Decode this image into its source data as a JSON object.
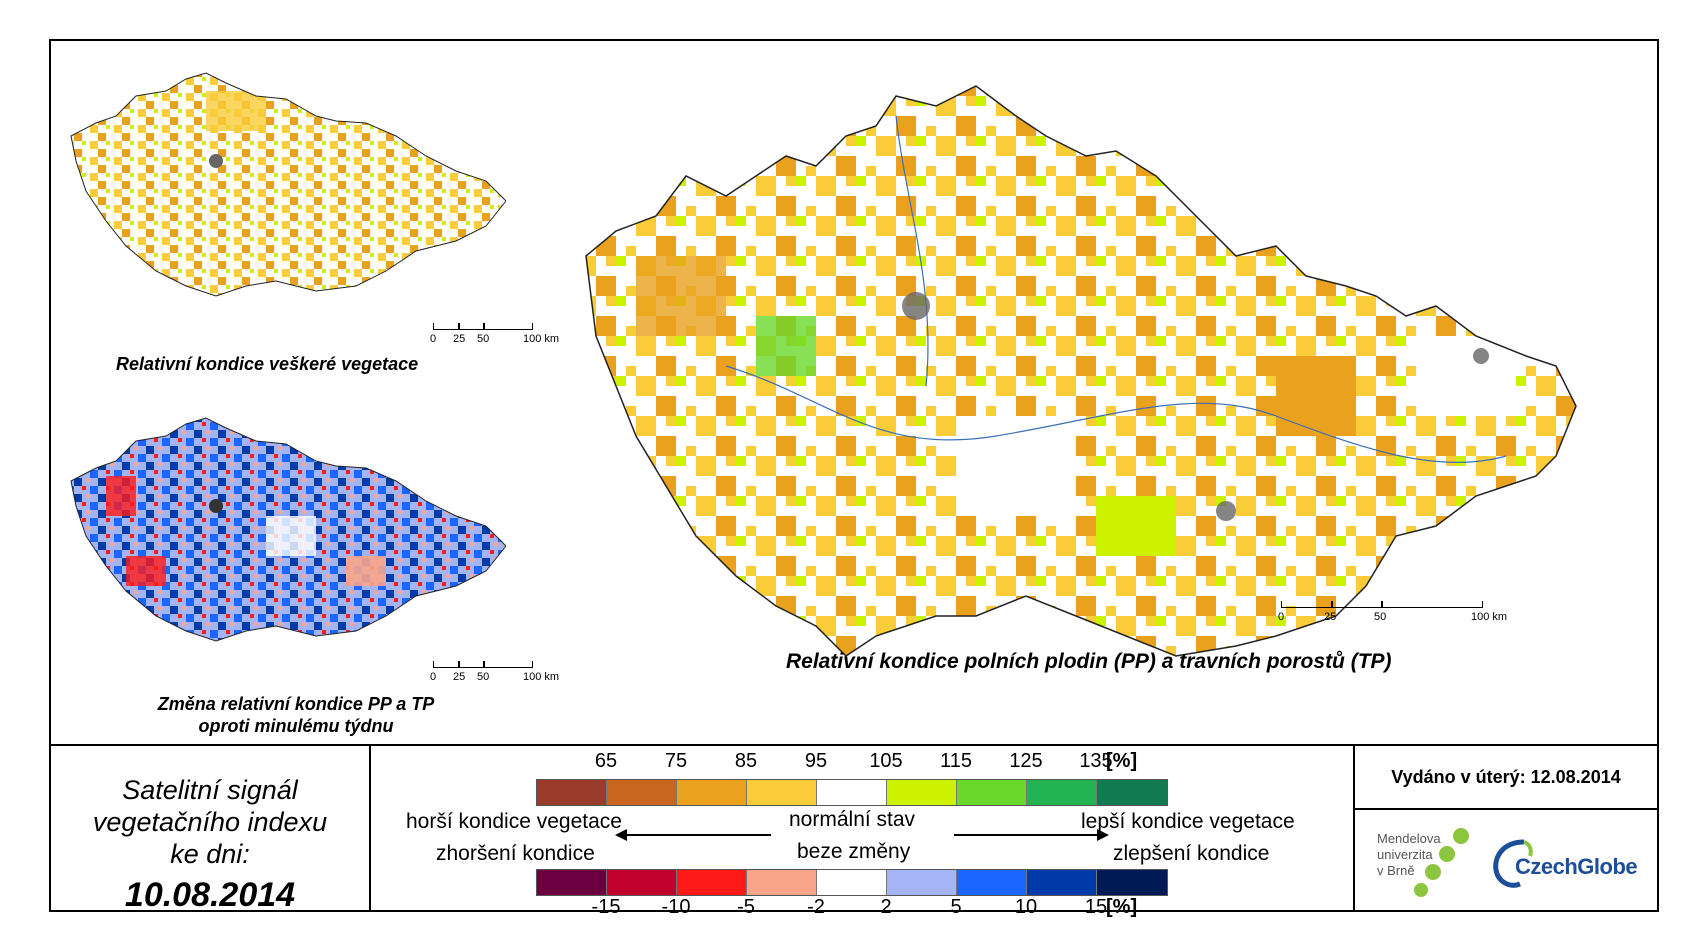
{
  "maps": {
    "main_caption": "Relativní kondice polních plodin (PP) a travních porostů (TP)",
    "top_left_caption": "Relativní kondice veškeré vegetace",
    "bottom_left_caption_line1": "Změna relativní kondice PP a TP",
    "bottom_left_caption_line2": "oproti minulému týdnu",
    "scale_labels": [
      "0",
      "25",
      "50",
      "100 km"
    ]
  },
  "signal": {
    "line1": "Satelitní signál",
    "line2": "vegetačního indexu",
    "line3": "ke dni:",
    "date": "10.08.2014"
  },
  "legend": {
    "top_ticks": [
      "65",
      "75",
      "85",
      "95",
      "105",
      "115",
      "125",
      "135"
    ],
    "top_colors": [
      "#9a3c2b",
      "#c9651f",
      "#e9a11e",
      "#f9cc38",
      "#ffffff",
      "#ccf200",
      "#6ad82a",
      "#22b452",
      "#117a50"
    ],
    "bottom_ticks": [
      "-15",
      "-10",
      "-5",
      "-2",
      "2",
      "5",
      "10",
      "15"
    ],
    "bottom_colors": [
      "#6a003f",
      "#c1002e",
      "#ff1a1a",
      "#f8a58c",
      "#ffffff",
      "#a4b4f4",
      "#1a66ff",
      "#003aa8",
      "#001a55"
    ],
    "unit": "[%]",
    "worse_condition": "horší kondice vegetace",
    "worsening": "zhoršení kondice",
    "normal_state": "normální stav",
    "no_change": "beze změny",
    "better_condition": "lepší kondice vegetace",
    "improvement": "zlepšení kondice"
  },
  "issued": "Vydáno v úterý: 12.08.2014",
  "logos": {
    "mendel_line1": "Mendelova",
    "mendel_line2": "univerzita",
    "mendel_line3": "v Brně",
    "czechglobe": "CzechGlobe"
  }
}
